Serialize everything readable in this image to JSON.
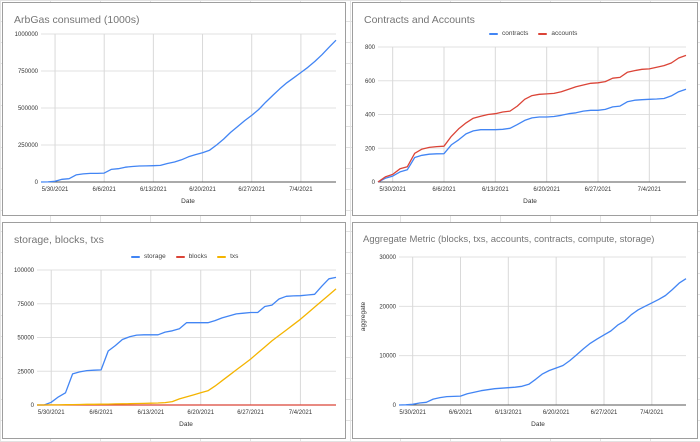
{
  "colors": {
    "blue": "#4285f4",
    "red": "#db4437",
    "yellow": "#f4b400"
  },
  "chart_data": [
    {
      "type": "line",
      "title": "ArbGas consumed (1000s)",
      "xlabel": "Date",
      "ylabel": "",
      "ylim": [
        0,
        1000000
      ],
      "yticks": [
        "0",
        "250000",
        "500000",
        "750000",
        "1000000"
      ],
      "xticks": [
        "5/30/2021",
        "6/6/2021",
        "6/13/2021",
        "6/20/2021",
        "6/27/2021",
        "7/4/2021"
      ],
      "grid": true,
      "legend": "none",
      "x": [
        "5/28/2021",
        "5/29/2021",
        "5/30/2021",
        "5/31/2021",
        "6/1/2021",
        "6/2/2021",
        "6/3/2021",
        "6/4/2021",
        "6/5/2021",
        "6/6/2021",
        "6/7/2021",
        "6/8/2021",
        "6/9/2021",
        "6/10/2021",
        "6/11/2021",
        "6/12/2021",
        "6/13/2021",
        "6/14/2021",
        "6/15/2021",
        "6/16/2021",
        "6/17/2021",
        "6/18/2021",
        "6/19/2021",
        "6/20/2021",
        "6/21/2021",
        "6/22/2021",
        "6/23/2021",
        "6/24/2021",
        "6/25/2021",
        "6/26/2021",
        "6/27/2021",
        "6/28/2021",
        "6/29/2021",
        "6/30/2021",
        "7/1/2021",
        "7/2/2021",
        "7/3/2021",
        "7/4/2021",
        "7/5/2021",
        "7/6/2021",
        "7/7/2021",
        "7/8/2021",
        "7/9/2021"
      ],
      "series": [
        {
          "color": "#4285f4",
          "values": [
            0,
            1000,
            5000,
            18000,
            22000,
            48000,
            55000,
            58000,
            58000,
            60000,
            85000,
            90000,
            100000,
            105000,
            108000,
            109000,
            110000,
            112000,
            125000,
            135000,
            150000,
            170000,
            185000,
            198000,
            215000,
            250000,
            290000,
            335000,
            375000,
            415000,
            450000,
            490000,
            540000,
            585000,
            630000,
            670000,
            705000,
            740000,
            775000,
            815000,
            860000,
            910000,
            958000
          ]
        }
      ]
    },
    {
      "type": "line",
      "title": "Contracts and Accounts",
      "xlabel": "Date",
      "ylabel": "",
      "ylim": [
        0,
        800
      ],
      "yticks": [
        "0",
        "200",
        "400",
        "600",
        "800"
      ],
      "xticks": [
        "5/30/2021",
        "6/6/2021",
        "6/13/2021",
        "6/20/2021",
        "6/27/2021",
        "7/4/2021"
      ],
      "grid": true,
      "legend": "top",
      "x": [
        "5/28/2021",
        "5/29/2021",
        "5/30/2021",
        "5/31/2021",
        "6/1/2021",
        "6/2/2021",
        "6/3/2021",
        "6/4/2021",
        "6/5/2021",
        "6/6/2021",
        "6/7/2021",
        "6/8/2021",
        "6/9/2021",
        "6/10/2021",
        "6/11/2021",
        "6/12/2021",
        "6/13/2021",
        "6/14/2021",
        "6/15/2021",
        "6/16/2021",
        "6/17/2021",
        "6/18/2021",
        "6/19/2021",
        "6/20/2021",
        "6/21/2021",
        "6/22/2021",
        "6/23/2021",
        "6/24/2021",
        "6/25/2021",
        "6/26/2021",
        "6/27/2021",
        "6/28/2021",
        "6/29/2021",
        "6/30/2021",
        "7/1/2021",
        "7/2/2021",
        "7/3/2021",
        "7/4/2021",
        "7/5/2021",
        "7/6/2021",
        "7/7/2021",
        "7/8/2021",
        "7/9/2021"
      ],
      "series": [
        {
          "name": "contracts",
          "color": "#4285f4",
          "values": [
            0,
            22,
            35,
            60,
            72,
            145,
            158,
            165,
            167,
            168,
            220,
            250,
            285,
            303,
            310,
            310,
            310,
            312,
            318,
            340,
            365,
            380,
            385,
            385,
            388,
            395,
            405,
            410,
            420,
            425,
            425,
            430,
            445,
            450,
            475,
            485,
            488,
            490,
            492,
            495,
            510,
            535,
            550
          ]
        },
        {
          "name": "accounts",
          "color": "#db4437",
          "values": [
            0,
            30,
            45,
            78,
            90,
            170,
            195,
            205,
            210,
            212,
            270,
            315,
            350,
            378,
            390,
            400,
            405,
            415,
            420,
            450,
            490,
            512,
            520,
            522,
            525,
            535,
            550,
            565,
            575,
            585,
            588,
            595,
            615,
            620,
            650,
            660,
            668,
            670,
            680,
            690,
            705,
            735,
            750
          ]
        }
      ]
    },
    {
      "type": "line",
      "title": "storage, blocks, txs",
      "xlabel": "Date",
      "ylabel": "",
      "ylim": [
        0,
        100000
      ],
      "yticks": [
        "0",
        "25000",
        "50000",
        "75000",
        "100000"
      ],
      "xticks": [
        "5/30/2021",
        "6/6/2021",
        "6/13/2021",
        "6/20/2021",
        "6/27/2021",
        "7/4/2021"
      ],
      "grid": true,
      "legend": "top",
      "x": [
        "5/28/2021",
        "5/29/2021",
        "5/30/2021",
        "5/31/2021",
        "6/1/2021",
        "6/2/2021",
        "6/3/2021",
        "6/4/2021",
        "6/5/2021",
        "6/6/2021",
        "6/7/2021",
        "6/8/2021",
        "6/9/2021",
        "6/10/2021",
        "6/11/2021",
        "6/12/2021",
        "6/13/2021",
        "6/14/2021",
        "6/15/2021",
        "6/16/2021",
        "6/17/2021",
        "6/18/2021",
        "6/19/2021",
        "6/20/2021",
        "6/21/2021",
        "6/22/2021",
        "6/23/2021",
        "6/24/2021",
        "6/25/2021",
        "6/26/2021",
        "6/27/2021",
        "6/28/2021",
        "6/29/2021",
        "6/30/2021",
        "7/1/2021",
        "7/2/2021",
        "7/3/2021",
        "7/4/2021",
        "7/5/2021",
        "7/6/2021",
        "7/7/2021",
        "7/8/2021",
        "7/9/2021"
      ],
      "series": [
        {
          "name": "storage",
          "color": "#4285f4",
          "values": [
            0,
            0,
            2000,
            6000,
            9000,
            23000,
            24500,
            25500,
            25800,
            26000,
            40000,
            44000,
            48500,
            50500,
            51800,
            52000,
            52000,
            52000,
            54000,
            55000,
            56500,
            61000,
            61000,
            61000,
            61000,
            62500,
            64500,
            66000,
            67500,
            68000,
            68500,
            68500,
            73000,
            74000,
            78500,
            80500,
            80800,
            81000,
            81500,
            82000,
            88000,
            93500,
            94500
          ]
        },
        {
          "name": "blocks",
          "color": "#db4437",
          "values": [
            0,
            0,
            0,
            0,
            0,
            0,
            0,
            0,
            0,
            0,
            0,
            0,
            0,
            0,
            0,
            0,
            0,
            0,
            0,
            0,
            0,
            0,
            0,
            0,
            0,
            0,
            0,
            0,
            0,
            0,
            0,
            0,
            0,
            0,
            0,
            0,
            0,
            0,
            0,
            0,
            0,
            0,
            0
          ]
        },
        {
          "name": "txs",
          "color": "#f4b400",
          "values": [
            0,
            0,
            50,
            100,
            200,
            300,
            400,
            500,
            550,
            600,
            700,
            800,
            900,
            1000,
            1100,
            1200,
            1300,
            1500,
            1800,
            2500,
            4500,
            6000,
            7500,
            9000,
            10500,
            14000,
            18000,
            22000,
            26000,
            30000,
            34000,
            38500,
            43000,
            47500,
            51500,
            55500,
            59500,
            63500,
            68000,
            72500,
            77000,
            81500,
            86000
          ]
        }
      ]
    },
    {
      "type": "line",
      "title": "Aggregate Metric (blocks, txs, accounts, contracts, compute, storage)",
      "xlabel": "Date",
      "ylabel": "aggregate",
      "ylim": [
        0,
        30000
      ],
      "yticks": [
        "0",
        "10000",
        "20000",
        "30000"
      ],
      "xticks": [
        "5/30/2021",
        "6/6/2021",
        "6/13/2021",
        "6/20/2021",
        "6/27/2021",
        "7/4/2021"
      ],
      "grid": true,
      "legend": "none",
      "x": [
        "5/28/2021",
        "5/29/2021",
        "5/30/2021",
        "5/31/2021",
        "6/1/2021",
        "6/2/2021",
        "6/3/2021",
        "6/4/2021",
        "6/5/2021",
        "6/6/2021",
        "6/7/2021",
        "6/8/2021",
        "6/9/2021",
        "6/10/2021",
        "6/11/2021",
        "6/12/2021",
        "6/13/2021",
        "6/14/2021",
        "6/15/2021",
        "6/16/2021",
        "6/17/2021",
        "6/18/2021",
        "6/19/2021",
        "6/20/2021",
        "6/21/2021",
        "6/22/2021",
        "6/23/2021",
        "6/24/2021",
        "6/25/2021",
        "6/26/2021",
        "6/27/2021",
        "6/28/2021",
        "6/29/2021",
        "6/30/2021",
        "7/1/2021",
        "7/2/2021",
        "7/3/2021",
        "7/4/2021",
        "7/5/2021",
        "7/6/2021",
        "7/7/2021",
        "7/8/2021",
        "7/9/2021"
      ],
      "series": [
        {
          "color": "#4285f4",
          "values": [
            0,
            50,
            150,
            400,
            550,
            1200,
            1500,
            1700,
            1750,
            1800,
            2300,
            2600,
            2900,
            3100,
            3300,
            3400,
            3500,
            3600,
            3800,
            4200,
            5200,
            6300,
            7000,
            7500,
            8000,
            9000,
            10200,
            11400,
            12500,
            13400,
            14200,
            15000,
            16200,
            17000,
            18300,
            19300,
            20000,
            20700,
            21400,
            22200,
            23400,
            24700,
            25600
          ]
        }
      ]
    }
  ]
}
